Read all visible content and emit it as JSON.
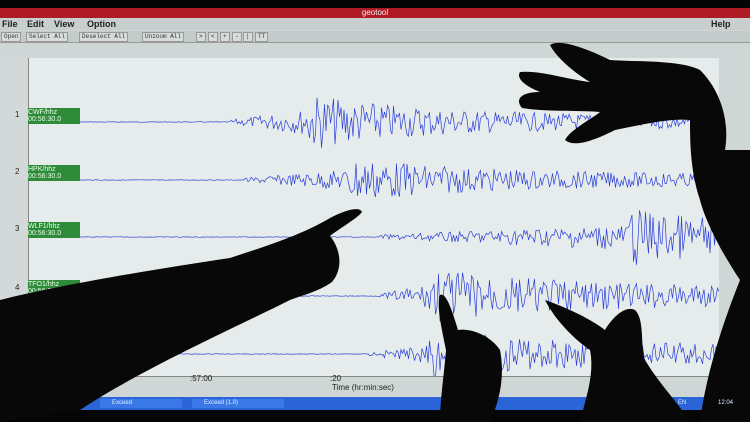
{
  "window": {
    "title": "geotool"
  },
  "menu": {
    "items": [
      "File",
      "Edit",
      "View",
      "Option"
    ],
    "help": "Help"
  },
  "toolbar": {
    "buttons": [
      "Open",
      "Select All",
      "Deselect All",
      "Unzoom All",
      ">",
      "<",
      "+",
      "-",
      "|",
      "TT"
    ]
  },
  "traces": [
    {
      "index": "1",
      "station": "CWF/hhz",
      "time": "00:56:30.0"
    },
    {
      "index": "2",
      "station": "HPK/hhz",
      "time": "00:56:30.0"
    },
    {
      "index": "3",
      "station": "WLF1/hhz",
      "time": "00:56:30.0"
    },
    {
      "index": "4",
      "station": "TFO1/hhz",
      "time": "00:56:30.0"
    }
  ],
  "axis": {
    "ticks": [
      ":57:00",
      ":20"
    ],
    "label": "Time (hr:min:sec)"
  },
  "taskbar": {
    "items": [
      "Exceed",
      "Exceed (1.0)"
    ],
    "clock": "12:04",
    "lang": "EN"
  },
  "colors": {
    "trace": "#2a3fd8",
    "label_bg": "#2e8b3a",
    "titlebar": "#b01a24",
    "taskbar": "#2a64d8"
  }
}
